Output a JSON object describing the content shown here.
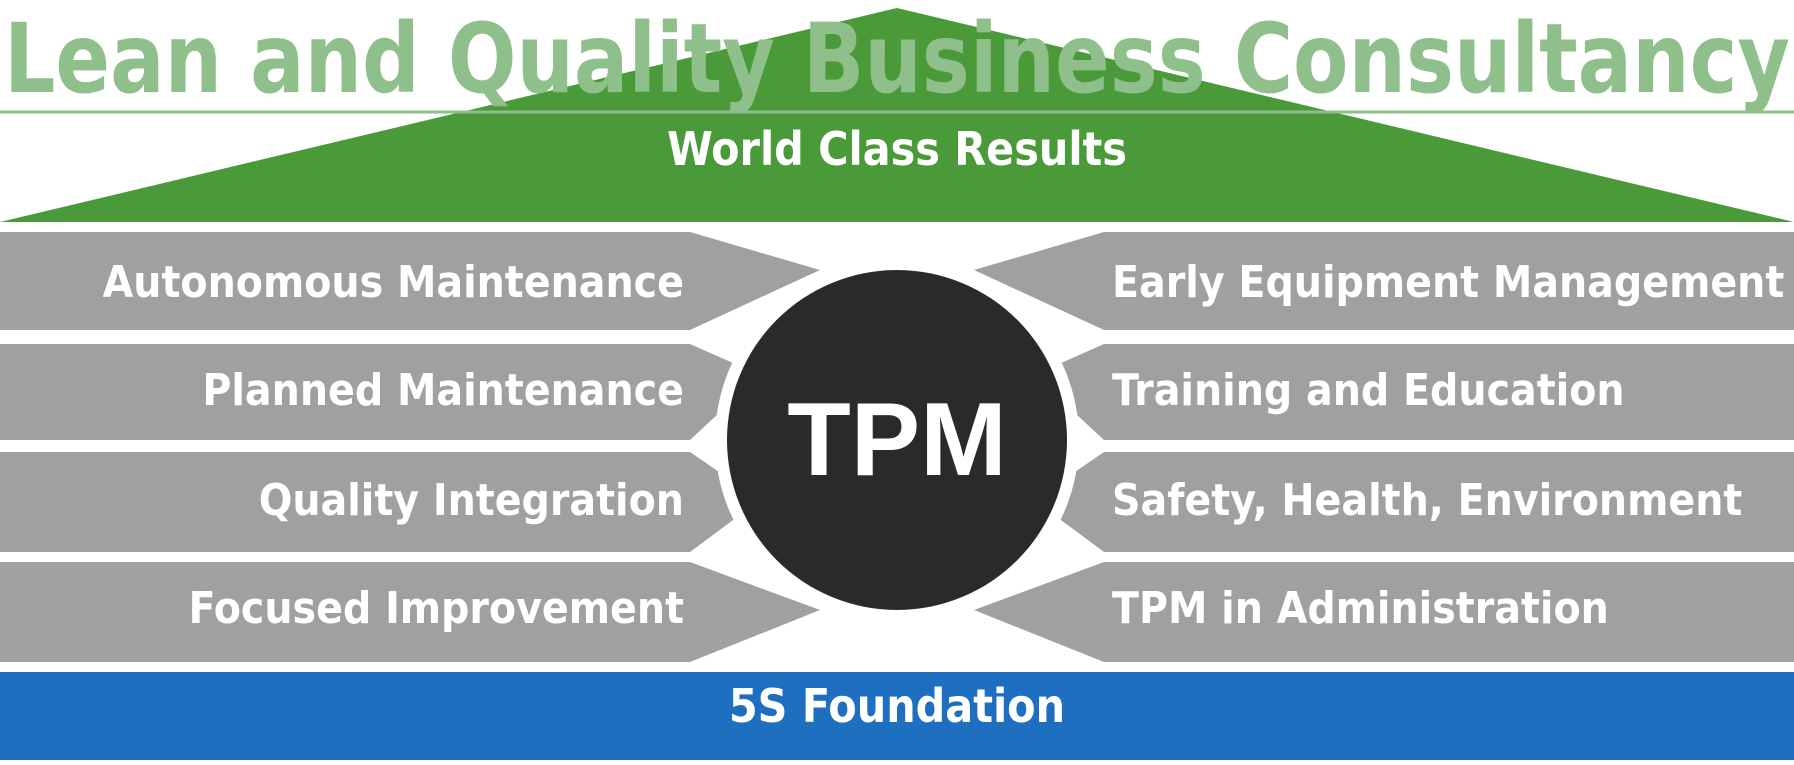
{
  "banner": {
    "text": "Lean and Quality Business Consultancy",
    "color": "#8fbf8a"
  },
  "roof": {
    "label": "World Class Results",
    "color": "#4a9a3a"
  },
  "center": {
    "label": "TPM",
    "color": "#2a2a2a"
  },
  "pillars": {
    "left": [
      "Autonomous Maintenance",
      "Planned Maintenance",
      "Quality Integration",
      "Focused Improvement"
    ],
    "right": [
      "Early Equipment Management",
      "Training and Education",
      "Safety, Health, Environment",
      "TPM in Administration"
    ],
    "color": "#a0a0a0"
  },
  "foundation": {
    "label": "5S Foundation",
    "color": "#1f6fc0"
  }
}
